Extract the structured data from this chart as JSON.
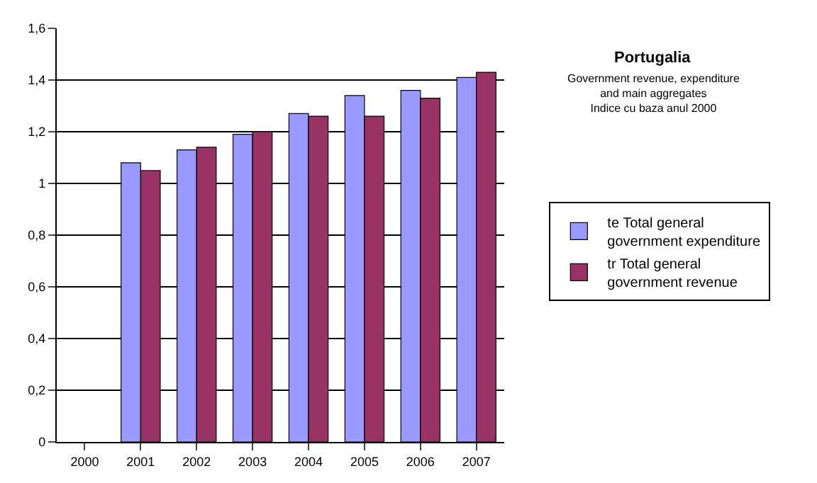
{
  "chart_data": {
    "type": "bar",
    "title": "Portugalia",
    "subtitle": "Government revenue, expenditure\nand main aggregates\nIndice cu baza anul 2000",
    "categories": [
      "2000",
      "2001",
      "2002",
      "2003",
      "2004",
      "2005",
      "2006",
      "2007"
    ],
    "series": [
      {
        "name": "te Total general government expenditure",
        "color": "#9999ff",
        "values": [
          null,
          1.08,
          1.13,
          1.19,
          1.27,
          1.34,
          1.36,
          1.41
        ]
      },
      {
        "name": "tr Total general government revenue",
        "color": "#993366",
        "values": [
          null,
          1.05,
          1.14,
          1.2,
          1.26,
          1.26,
          1.33,
          1.43
        ]
      }
    ],
    "ylim": [
      0,
      1.6
    ],
    "yticks": [
      0,
      {
        "value": 0.2,
        "label": "0,2"
      },
      {
        "value": 0.4,
        "label": "0,4"
      },
      {
        "value": 0.6,
        "label": "0,6"
      },
      {
        "value": 0.8,
        "label": "0,8"
      },
      1,
      {
        "value": 1.2,
        "label": "1,2"
      },
      {
        "value": 1.4,
        "label": "1,4"
      },
      {
        "value": 1.6,
        "label": "1,6"
      }
    ],
    "grid": "y",
    "legend": "right"
  }
}
